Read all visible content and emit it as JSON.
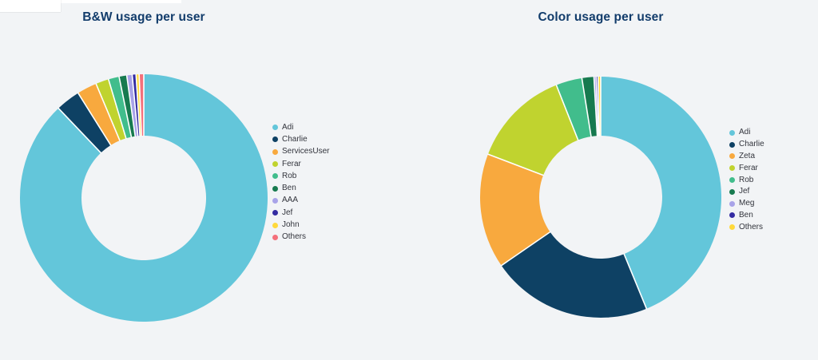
{
  "page": {
    "background_color": "#F2F4F6",
    "corner_artifact_color": "#FFFFFF",
    "title_color": "#123C6B",
    "legend_text_color": "#32343C",
    "separator_color": "#FFFFFF"
  },
  "chart_data": [
    {
      "type": "pie",
      "subtype": "donut",
      "title": "B&W usage per user",
      "legend_position": "right",
      "data_labels": false,
      "series": [
        {
          "label": "Adi",
          "value_pct": 87.9,
          "color": "#63C6DA"
        },
        {
          "label": "Charlie",
          "value_pct": 3.2,
          "color": "#0E4164"
        },
        {
          "label": "ServicesUser",
          "value_pct": 2.6,
          "color": "#F8A93E"
        },
        {
          "label": "Ferar",
          "value_pct": 1.7,
          "color": "#C0D32F"
        },
        {
          "label": "Rob",
          "value_pct": 1.4,
          "color": "#41BD8C"
        },
        {
          "label": "Ben",
          "value_pct": 1.0,
          "color": "#177A4F"
        },
        {
          "label": "AAA",
          "value_pct": 0.7,
          "color": "#A8A3E8"
        },
        {
          "label": "Jef",
          "value_pct": 0.5,
          "color": "#342CA2"
        },
        {
          "label": "John",
          "value_pct": 0.4,
          "color": "#FFD93B"
        },
        {
          "label": "Others",
          "value_pct": 0.6,
          "color": "#F4707B"
        }
      ]
    },
    {
      "type": "pie",
      "subtype": "donut",
      "title": "Color usage per user",
      "legend_position": "right",
      "data_labels": false,
      "series": [
        {
          "label": "Adi",
          "value_pct": 43.8,
          "color": "#63C6DA"
        },
        {
          "label": "Charlie",
          "value_pct": 21.6,
          "color": "#0E4164"
        },
        {
          "label": "Zeta",
          "value_pct": 15.4,
          "color": "#F8A93E"
        },
        {
          "label": "Ferar",
          "value_pct": 13.2,
          "color": "#C0D32F"
        },
        {
          "label": "Rob",
          "value_pct": 3.5,
          "color": "#41BD8C"
        },
        {
          "label": "Jef",
          "value_pct": 1.6,
          "color": "#177A4F"
        },
        {
          "label": "Meg",
          "value_pct": 0.3,
          "color": "#A8A3E8"
        },
        {
          "label": "Ben",
          "value_pct": 0.25,
          "color": "#342CA2"
        },
        {
          "label": "Others",
          "value_pct": 0.35,
          "color": "#FFD93B"
        }
      ]
    }
  ]
}
